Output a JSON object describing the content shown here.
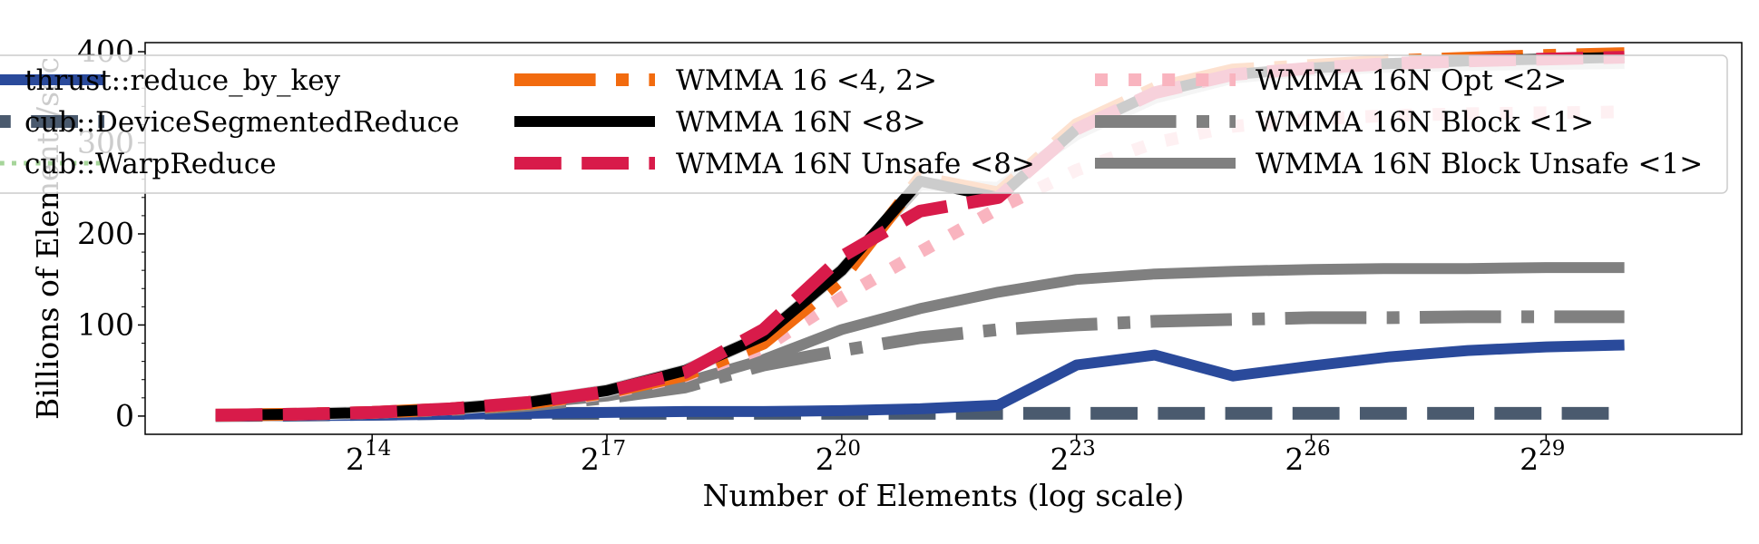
{
  "chart_data": {
    "type": "line",
    "title": "",
    "xlabel": "Number of Elements (log scale)",
    "ylabel": "Billions of Elements/sec",
    "xscale": "log2",
    "xlim_exp": [
      11.1,
      31.5
    ],
    "ylim": [
      -20,
      410
    ],
    "xticks": [
      {
        "exp": 14,
        "base": "2",
        "sup": "14"
      },
      {
        "exp": 17,
        "base": "2",
        "sup": "17"
      },
      {
        "exp": 20,
        "base": "2",
        "sup": "20"
      },
      {
        "exp": 23,
        "base": "2",
        "sup": "23"
      },
      {
        "exp": 26,
        "base": "2",
        "sup": "26"
      },
      {
        "exp": 29,
        "base": "2",
        "sup": "29"
      }
    ],
    "yticks": [
      {
        "value": 0,
        "label": "0"
      },
      {
        "value": 100,
        "label": "100"
      },
      {
        "value": 200,
        "label": "200"
      },
      {
        "value": 300,
        "label": "300"
      },
      {
        "value": 400,
        "label": "400"
      }
    ],
    "grid": false,
    "legend_position": "top, spanning three columns",
    "x_exp": [
      12,
      13,
      14,
      15,
      16,
      17,
      18,
      19,
      20,
      21,
      22,
      23,
      24,
      25,
      26,
      27,
      28,
      29,
      30
    ],
    "series": [
      {
        "name": "thrust::reduce_by_key",
        "color": "#2a4a9b",
        "dash": "solid",
        "width": 12,
        "legend_col": 0,
        "legend_row": 0,
        "values": [
          0,
          0.5,
          1,
          2,
          3,
          4,
          5,
          5,
          6,
          8,
          12,
          56,
          67,
          44,
          55,
          65,
          72,
          76,
          78
        ]
      },
      {
        "name": "cub::DeviceSegmentedReduce",
        "color": "#4a5a6e",
        "dash": "long",
        "width": 14,
        "legend_col": 0,
        "legend_row": 1,
        "values": [
          0.5,
          1,
          2,
          3,
          3,
          3,
          3,
          3,
          3,
          3,
          3,
          3,
          3,
          3,
          3,
          3,
          3,
          3,
          3
        ]
      },
      {
        "name": "cub::WarpReduce",
        "color": "#a6d59a",
        "dash": "dotted",
        "width": 5,
        "legend_col": 0,
        "legend_row": 2,
        "values": [
          1,
          2,
          4,
          8,
          14,
          22,
          37,
          62,
          98,
          120,
          138,
          150,
          157,
          160,
          162,
          163,
          163,
          164,
          164
        ]
      },
      {
        "name": "WMMA 16 <4, 2>",
        "color": "#f26b0f",
        "dash": "dashdot",
        "width": 14,
        "legend_col": 1,
        "legend_row": 0,
        "values": [
          1,
          2,
          4,
          8,
          14,
          26,
          45,
          80,
          150,
          262,
          245,
          320,
          360,
          380,
          385,
          390,
          393,
          396,
          398
        ]
      },
      {
        "name": "WMMA 16N <8>",
        "color": "#000000",
        "dash": "solid",
        "width": 12,
        "legend_col": 1,
        "legend_row": 1,
        "values": [
          1,
          2,
          4,
          8,
          15,
          28,
          50,
          88,
          160,
          258,
          240,
          315,
          355,
          375,
          382,
          387,
          390,
          392,
          394
        ]
      },
      {
        "name": "WMMA 16N Unsafe <8>",
        "color": "#d81b4a",
        "dash": "dashed",
        "width": 14,
        "legend_col": 1,
        "legend_row": 2,
        "values": [
          1,
          2,
          4,
          8,
          15,
          27,
          48,
          95,
          175,
          225,
          240,
          315,
          355,
          375,
          382,
          387,
          390,
          392,
          394
        ]
      },
      {
        "name": "WMMA 16N Opt <2>",
        "color": "#f9b4bf",
        "dash": "dotted",
        "width": 14,
        "legend_col": 2,
        "legend_row": 0,
        "values": [
          1,
          2,
          4,
          8,
          14,
          25,
          44,
          75,
          130,
          180,
          228,
          270,
          300,
          318,
          326,
          330,
          332,
          333,
          334
        ]
      },
      {
        "name": "WMMA 16N Block <1>",
        "color": "#808080",
        "dash": "dashdot",
        "width": 14,
        "legend_col": 2,
        "legend_row": 1,
        "values": [
          1,
          2,
          4,
          7,
          12,
          20,
          32,
          56,
          72,
          86,
          95,
          100,
          104,
          106,
          108,
          108,
          109,
          109,
          109
        ]
      },
      {
        "name": "WMMA 16N Block Unsafe <1>",
        "color": "#808080",
        "dash": "solid",
        "width": 12,
        "legend_col": 2,
        "legend_row": 2,
        "values": [
          1,
          2,
          4,
          8,
          14,
          22,
          37,
          62,
          95,
          118,
          136,
          150,
          156,
          159,
          161,
          162,
          162,
          163,
          163
        ]
      },
      {
        "name": "",
        "color": "#cccccc",
        "dash": "solid",
        "width": 14,
        "legend_col": -1,
        "legend_row": -1,
        "values": [
          1,
          2,
          4,
          8,
          15,
          28,
          50,
          88,
          160,
          255,
          250,
          310,
          350,
          372,
          380,
          384,
          386,
          387,
          388
        ]
      }
    ]
  }
}
